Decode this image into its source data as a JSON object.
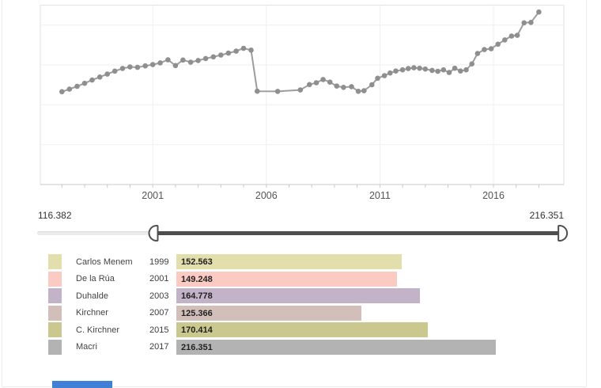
{
  "chart_data": [
    {
      "type": "line",
      "title": "",
      "xlabel": "",
      "ylabel": "",
      "xlim": [
        1996.05,
        2019.1
      ],
      "ylim": [
        0,
        225
      ],
      "grid": true,
      "grid_y_values": [
        50,
        100,
        150,
        200
      ],
      "x_ticks_labeled": [
        2001,
        2006,
        2011,
        2016
      ],
      "minor_tick_start": 1997,
      "minor_tick_end": 2018,
      "line_color": "#9d9d9d",
      "marker_color": "#8f8f8f",
      "points": [
        [
          1997.0,
          116.4
        ],
        [
          1997.33,
          119.6
        ],
        [
          1997.67,
          123.2
        ],
        [
          1998.0,
          127.0
        ],
        [
          1998.33,
          131.0
        ],
        [
          1998.67,
          134.8
        ],
        [
          1999.0,
          138.5
        ],
        [
          1999.33,
          142.3
        ],
        [
          1999.67,
          145.6
        ],
        [
          2000.0,
          147.5
        ],
        [
          2000.33,
          147.0
        ],
        [
          2000.67,
          148.8
        ],
        [
          2001.0,
          150.4
        ],
        [
          2001.33,
          152.6
        ],
        [
          2001.67,
          156.5
        ],
        [
          2002.0,
          149.2
        ],
        [
          2002.33,
          156.2
        ],
        [
          2002.67,
          153.5
        ],
        [
          2003.0,
          155.6
        ],
        [
          2003.33,
          158.0
        ],
        [
          2003.67,
          160.1
        ],
        [
          2004.0,
          162.4
        ],
        [
          2004.33,
          164.8
        ],
        [
          2004.67,
          167.3
        ],
        [
          2005.0,
          170.9
        ],
        [
          2005.33,
          168.6
        ],
        [
          2005.6,
          117.0
        ],
        [
          2006.5,
          116.8
        ],
        [
          2007.5,
          118.6
        ],
        [
          2007.9,
          125.4
        ],
        [
          2008.2,
          127.6
        ],
        [
          2008.5,
          131.7
        ],
        [
          2008.8,
          128.4
        ],
        [
          2009.1,
          123.5
        ],
        [
          2009.4,
          121.9
        ],
        [
          2009.75,
          122.8
        ],
        [
          2010.05,
          116.9
        ],
        [
          2010.3,
          117.6
        ],
        [
          2010.65,
          125.2
        ],
        [
          2010.9,
          133.3
        ],
        [
          2011.2,
          136.6
        ],
        [
          2011.45,
          139.9
        ],
        [
          2011.7,
          142.4
        ],
        [
          2012.0,
          143.8
        ],
        [
          2012.25,
          145.4
        ],
        [
          2012.5,
          146.4
        ],
        [
          2012.75,
          145.8
        ],
        [
          2013.0,
          144.8
        ],
        [
          2013.3,
          143.1
        ],
        [
          2013.55,
          142.1
        ],
        [
          2013.8,
          143.8
        ],
        [
          2014.05,
          140.5
        ],
        [
          2014.3,
          145.8
        ],
        [
          2014.55,
          142.4
        ],
        [
          2014.8,
          143.8
        ],
        [
          2015.05,
          151.3
        ],
        [
          2015.3,
          164.4
        ],
        [
          2015.6,
          169.3
        ],
        [
          2015.9,
          170.4
        ],
        [
          2016.2,
          176.0
        ],
        [
          2016.5,
          181.4
        ],
        [
          2016.8,
          186.3
        ],
        [
          2017.05,
          187.2
        ],
        [
          2017.35,
          202.8
        ],
        [
          2017.65,
          203.3
        ],
        [
          2018.0,
          216.351
        ]
      ]
    },
    {
      "type": "bar",
      "orientation": "horizontal",
      "categories": [
        "Carlos Menem",
        "De la Rúa",
        "Duhalde",
        "Kirchner",
        "C. Kirchner",
        "Macri"
      ],
      "years": [
        "1999",
        "2001",
        "2003",
        "2007",
        "2015",
        "2017"
      ],
      "values": [
        152.563,
        149.248,
        164.778,
        125.366,
        170.414,
        216.351
      ],
      "value_labels": [
        "152.563",
        "149.248",
        "164.778",
        "125.366",
        "170.414",
        "216.351"
      ],
      "colors": [
        "#e2dfad",
        "#fbcac3",
        "#c3b3c8",
        "#d3bfba",
        "#cac88e",
        "#b3b3b3"
      ],
      "xlim": [
        0,
        216.351
      ]
    }
  ],
  "slider": {
    "min_label": "116.382",
    "max_label": "216.351",
    "handles": [
      0.2214,
      1.0
    ],
    "track_color": "#ececec",
    "fill_color": "#4d4d4d"
  },
  "legend": {
    "rows": [
      {
        "name": "Carlos Menem",
        "year": "1999",
        "value": "152.563",
        "color": "#e2dfad"
      },
      {
        "name": "De la Rúa",
        "year": "2001",
        "value": "149.248",
        "color": "#fbcac3"
      },
      {
        "name": "Duhalde",
        "year": "2003",
        "value": "164.778",
        "color": "#c3b3c8"
      },
      {
        "name": "Kirchner",
        "year": "2007",
        "value": "125.366",
        "color": "#d3bfba"
      },
      {
        "name": "C. Kirchner",
        "year": "2015",
        "value": "170.414",
        "color": "#cac88e"
      },
      {
        "name": "Macri",
        "year": "2017",
        "value": "216.351",
        "color": "#b3b3b3"
      }
    ]
  }
}
